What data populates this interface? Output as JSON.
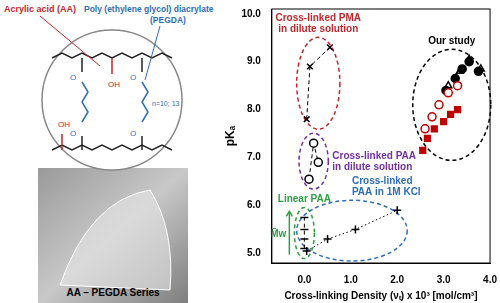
{
  "chart_data": {
    "type": "scatter",
    "x_label": "Cross-linking Density (νₜ) x 10³ [mol/cm³]",
    "y_label": "pKₐ",
    "xlim": [
      -0.7,
      4.0
    ],
    "xticks": [
      {
        "value": 0,
        "label": "0.0"
      },
      {
        "value": 1,
        "label": "1.0"
      },
      {
        "value": 2,
        "label": "2.0"
      },
      {
        "value": 3,
        "label": "3.0"
      },
      {
        "value": 4,
        "label": "4.0"
      }
    ],
    "ylim": [
      4.8,
      10.1
    ],
    "yticks": [
      {
        "value": 5,
        "label": "5.0"
      },
      {
        "value": 6,
        "label": "6.0"
      },
      {
        "value": 7,
        "label": "7.0"
      },
      {
        "value": 8,
        "label": "8.0"
      },
      {
        "value": 9,
        "label": "9.0"
      },
      {
        "value": 10,
        "label": "10.0"
      }
    ],
    "grid": false,
    "series": [
      {
        "name": "Cross-linked PMA in dilute solution",
        "color": "#000000",
        "marker": "x",
        "line_style": "dashed",
        "x": [
          0.05,
          0.12,
          0.55
        ],
        "values": [
          7.8,
          8.9,
          9.3
        ]
      },
      {
        "name": "Cross-linked PAA in dilute solution",
        "color": "#000000",
        "marker": "open_circle",
        "line_style": "dashed",
        "x": [
          0.1,
          0.2,
          0.3
        ],
        "values": [
          6.55,
          7.3,
          6.9
        ]
      },
      {
        "name": "Linear PAA",
        "color": "#000000",
        "marker": "dash",
        "line_style": "dashed",
        "x": [
          0,
          0,
          0,
          0
        ],
        "values": [
          5.1,
          5.3,
          5.5,
          5.75
        ]
      },
      {
        "name": "Cross-linked PAA in 1M KCl",
        "color": "#000000",
        "marker": "plus",
        "line_style": "dotted",
        "x": [
          0.05,
          0.5,
          1.1,
          2.0
        ],
        "values": [
          5.05,
          5.3,
          5.5,
          5.9
        ]
      },
      {
        "name": "Our study",
        "color": "#c00000",
        "marker": "square",
        "line_style": "none",
        "x": [
          2.55,
          2.65,
          2.8,
          3.0,
          3.15,
          3.3
        ],
        "values": [
          7.15,
          7.4,
          7.6,
          7.75,
          7.9,
          8.0
        ]
      },
      {
        "name": "Our study",
        "color": "#c00000",
        "marker": "open_circle",
        "line_style": "none",
        "x": [
          2.6,
          2.75,
          2.9,
          3.1,
          3.3
        ],
        "values": [
          7.6,
          7.85,
          8.1,
          8.35,
          8.5
        ]
      },
      {
        "name": "Our study",
        "color": "#000000",
        "marker": "circle",
        "line_style": "none",
        "x": [
          3.05,
          3.25,
          3.4,
          3.55,
          3.75
        ],
        "values": [
          8.4,
          8.65,
          8.85,
          9.0,
          8.8
        ]
      },
      {
        "name": "Our study",
        "color": "#000000",
        "marker": "open_triangle",
        "line_style": "none",
        "x": [
          3.1,
          3.35,
          3.55,
          3.8
        ],
        "values": [
          8.5,
          8.8,
          9.05,
          8.85
        ]
      }
    ],
    "annotations": [
      {
        "text": "Cross-linked PMA in dilute solution",
        "color": "#c0282d"
      },
      {
        "text": "Cross-linked PAA in dilute solution",
        "color": "#7030a0"
      },
      {
        "text": "Linear PAA",
        "color": "#2e9e44",
        "arrow_label": "M̄w"
      },
      {
        "text": "Cross-linked PAA in 1M KCl",
        "color": "#2f6db5"
      },
      {
        "text": "Our study",
        "color": "#000000"
      }
    ],
    "legend": false
  },
  "diagram": {
    "labels": {
      "acrylic_acid": "Acrylic acid (AA)",
      "pegda": "Poly (ethylene glycol) diacrylate",
      "pegda_abbr": "(PEGDA)"
    },
    "structure": {
      "repeat": "n=10; 13",
      "oxygen": "O",
      "acid": "OH"
    },
    "photo_caption": "AA – PEGDA Series"
  }
}
